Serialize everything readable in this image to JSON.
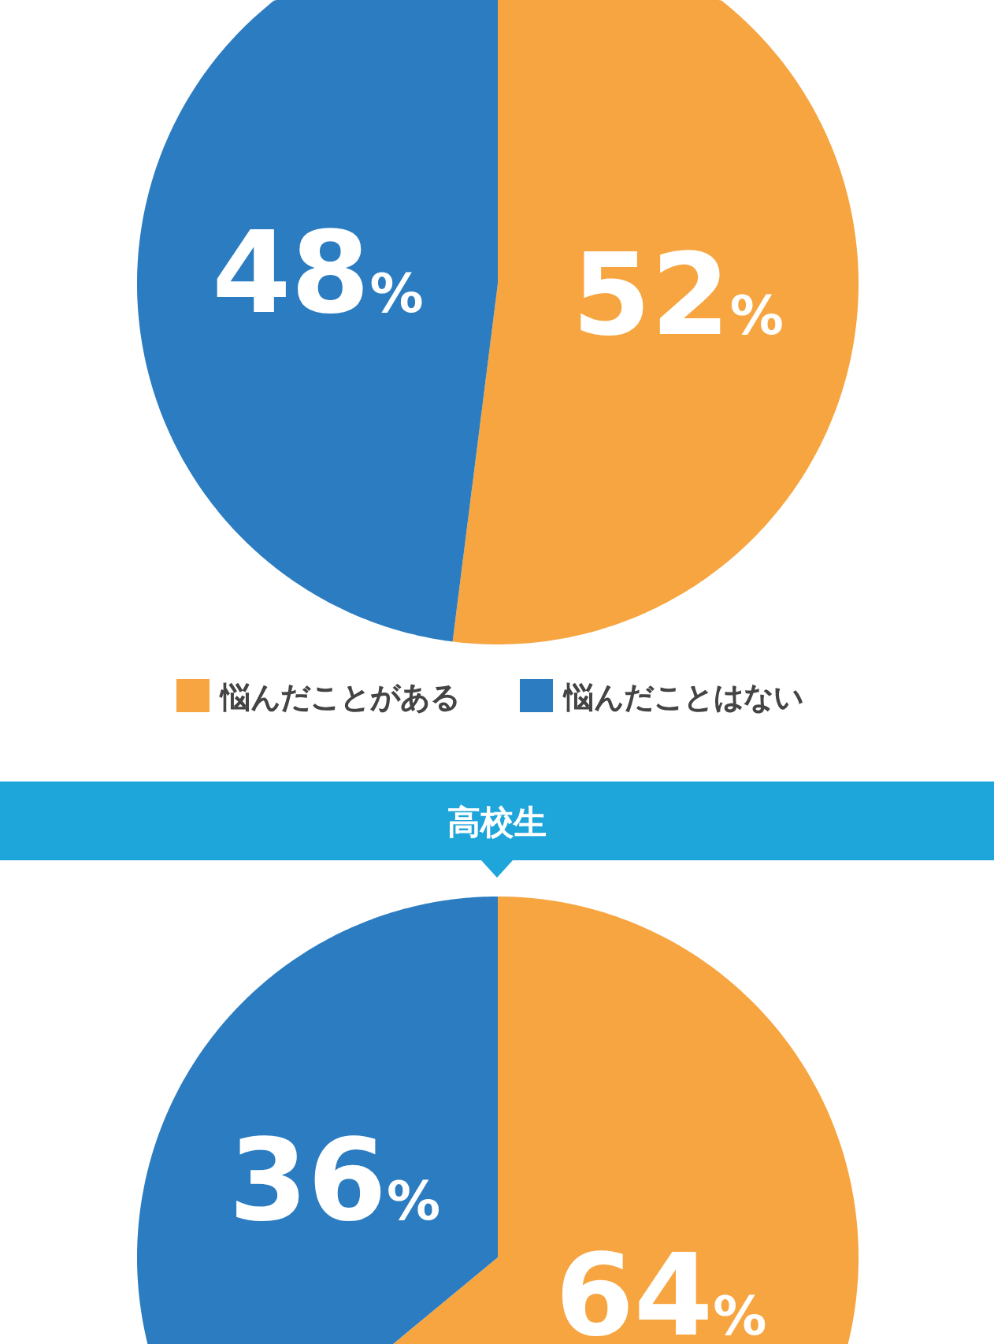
{
  "chart_data": [
    {
      "type": "pie",
      "categories": [
        "悩んだことがある",
        "悩んだことはない"
      ],
      "values": [
        52,
        48
      ],
      "colors": [
        "#f7a541",
        "#2b7cc0"
      ],
      "value_labels": [
        "52%",
        "48%"
      ],
      "legend": "bottom"
    },
    {
      "type": "pie",
      "title": "高校生",
      "categories": [
        null,
        null
      ],
      "values": [
        64,
        36
      ],
      "colors": [
        "#f7a541",
        "#2b7cc0"
      ],
      "value_labels": [
        "64%",
        "36%"
      ]
    }
  ]
}
